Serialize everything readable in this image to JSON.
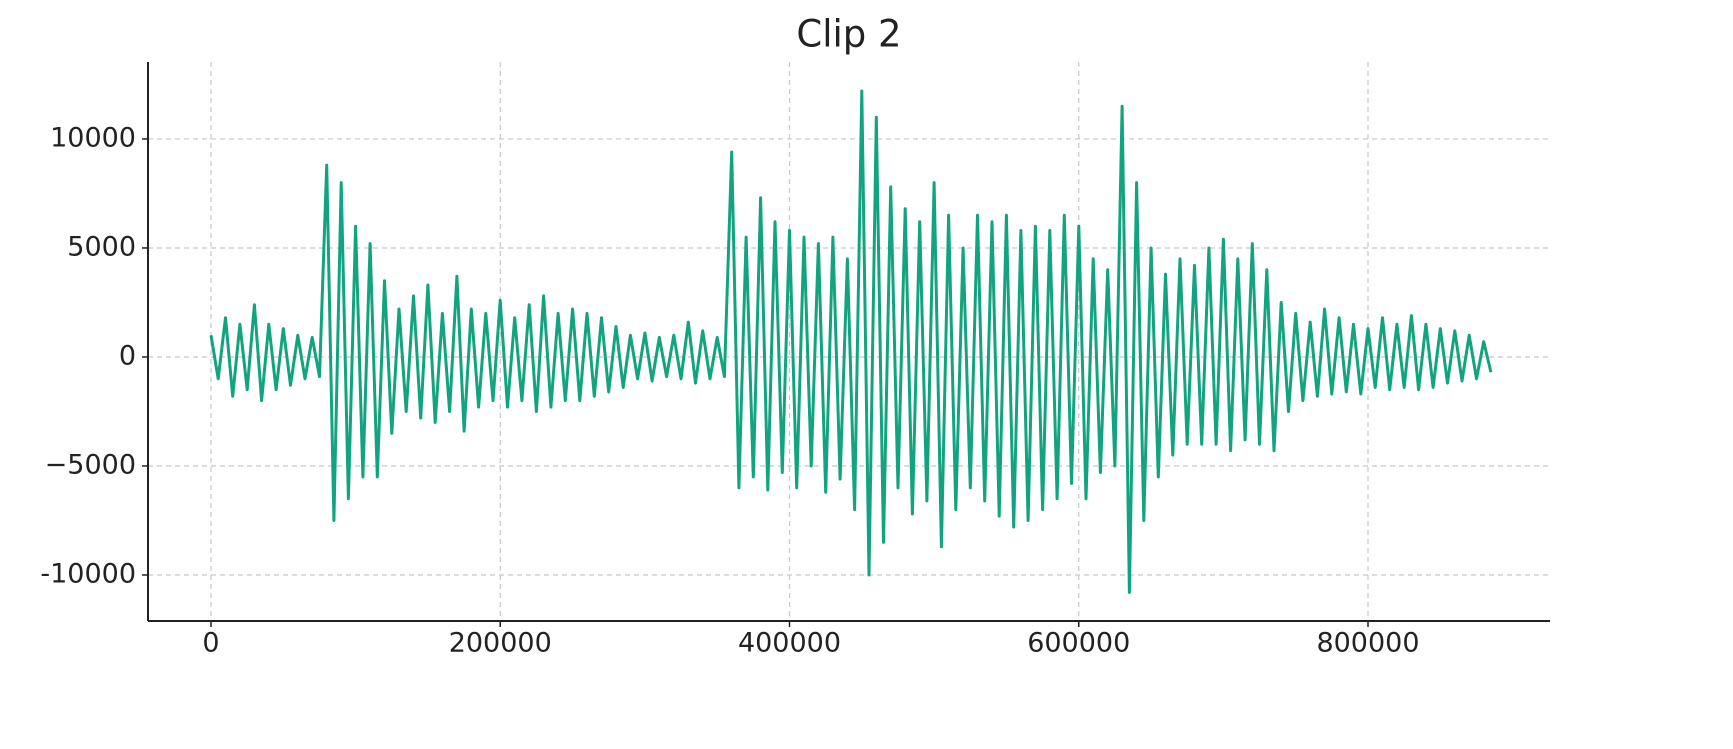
{
  "chart_data": {
    "type": "line",
    "title": "Clip 2",
    "x": [
      0,
      5000,
      10000,
      15000,
      20000,
      25000,
      30000,
      35000,
      40000,
      45000,
      50000,
      55000,
      60000,
      65000,
      70000,
      75000,
      80000,
      85000,
      90000,
      95000,
      100000,
      105000,
      110000,
      115000,
      120000,
      125000,
      130000,
      135000,
      140000,
      145000,
      150000,
      155000,
      160000,
      165000,
      170000,
      175000,
      180000,
      185000,
      190000,
      195000,
      200000,
      205000,
      210000,
      215000,
      220000,
      225000,
      230000,
      235000,
      240000,
      245000,
      250000,
      255000,
      260000,
      265000,
      270000,
      275000,
      280000,
      285000,
      290000,
      295000,
      300000,
      305000,
      310000,
      315000,
      320000,
      325000,
      330000,
      335000,
      340000,
      345000,
      350000,
      355000,
      360000,
      365000,
      370000,
      375000,
      380000,
      385000,
      390000,
      395000,
      400000,
      405000,
      410000,
      415000,
      420000,
      425000,
      430000,
      435000,
      440000,
      445000,
      450000,
      455000,
      460000,
      465000,
      470000,
      475000,
      480000,
      485000,
      490000,
      495000,
      500000,
      505000,
      510000,
      515000,
      520000,
      525000,
      530000,
      535000,
      540000,
      545000,
      550000,
      555000,
      560000,
      565000,
      570000,
      575000,
      580000,
      585000,
      590000,
      595000,
      600000,
      605000,
      610000,
      615000,
      620000,
      625000,
      630000,
      635000,
      640000,
      645000,
      650000,
      655000,
      660000,
      665000,
      670000,
      675000,
      680000,
      685000,
      690000,
      695000,
      700000,
      705000,
      710000,
      715000,
      720000,
      725000,
      730000,
      735000,
      740000,
      745000,
      750000,
      755000,
      760000,
      765000,
      770000,
      775000,
      780000,
      785000,
      790000,
      795000,
      800000,
      805000,
      810000,
      815000,
      820000,
      825000,
      830000,
      835000,
      840000,
      845000,
      850000,
      855000,
      860000,
      865000,
      870000,
      875000,
      880000,
      885000
    ],
    "series": [
      {
        "color": "#12a47f",
        "values": [
          1000,
          -1000,
          1800,
          -1800,
          1500,
          -1500,
          2400,
          -2000,
          1500,
          -1500,
          1300,
          -1300,
          1000,
          -1000,
          900,
          -900,
          8800,
          -7500,
          8000,
          -6500,
          6000,
          -5500,
          5200,
          -5500,
          3500,
          -3500,
          2200,
          -2500,
          2800,
          -2800,
          3300,
          -3000,
          2000,
          -2500,
          3700,
          -3400,
          2200,
          -2300,
          2000,
          -2000,
          2600,
          -2300,
          1800,
          -2000,
          2400,
          -2500,
          2800,
          -2300,
          2000,
          -2000,
          2200,
          -2000,
          2000,
          -1800,
          1800,
          -1600,
          1400,
          -1400,
          1000,
          -1000,
          1100,
          -1100,
          900,
          -900,
          1000,
          -1000,
          1600,
          -1200,
          1200,
          -1000,
          900,
          -900,
          9400,
          -6000,
          5500,
          -5500,
          7300,
          -6100,
          6200,
          -5300,
          5800,
          -6000,
          5500,
          -5000,
          5200,
          -6200,
          5500,
          -5600,
          4500,
          -7000,
          12200,
          -10000,
          11000,
          -8500,
          7800,
          -6000,
          6800,
          -7200,
          6200,
          -6600,
          8000,
          -8700,
          6500,
          -7000,
          5000,
          -6000,
          6500,
          -6600,
          6200,
          -7300,
          6500,
          -7800,
          5800,
          -7500,
          6000,
          -7000,
          5800,
          -6500,
          6500,
          -5800,
          6000,
          -6500,
          4500,
          -5300,
          4000,
          -5000,
          11500,
          -10800,
          8000,
          -7500,
          5000,
          -5500,
          3800,
          -4500,
          4500,
          -4000,
          4200,
          -4000,
          5000,
          -4000,
          5400,
          -4300,
          4500,
          -3800,
          5200,
          -4000,
          4000,
          -4300,
          2500,
          -2500,
          2000,
          -2000,
          1600,
          -1800,
          2200,
          -1700,
          1800,
          -1600,
          1500,
          -1700,
          1300,
          -1400,
          1800,
          -1500,
          1500,
          -1400,
          1900,
          -1500,
          1500,
          -1400,
          1300,
          -1200,
          1200,
          -1100,
          1000,
          -1000,
          700,
          -700
        ]
      }
    ],
    "xlim": [
      -43560,
      925840
    ],
    "xticks": [
      0,
      200000,
      400000,
      600000,
      800000
    ],
    "ylim": [
      -12110,
      13530
    ],
    "yticks": [
      -10000,
      {
        "value": -5000,
        "label": "−5000"
      },
      0,
      5000,
      10000
    ],
    "grid": true
  }
}
